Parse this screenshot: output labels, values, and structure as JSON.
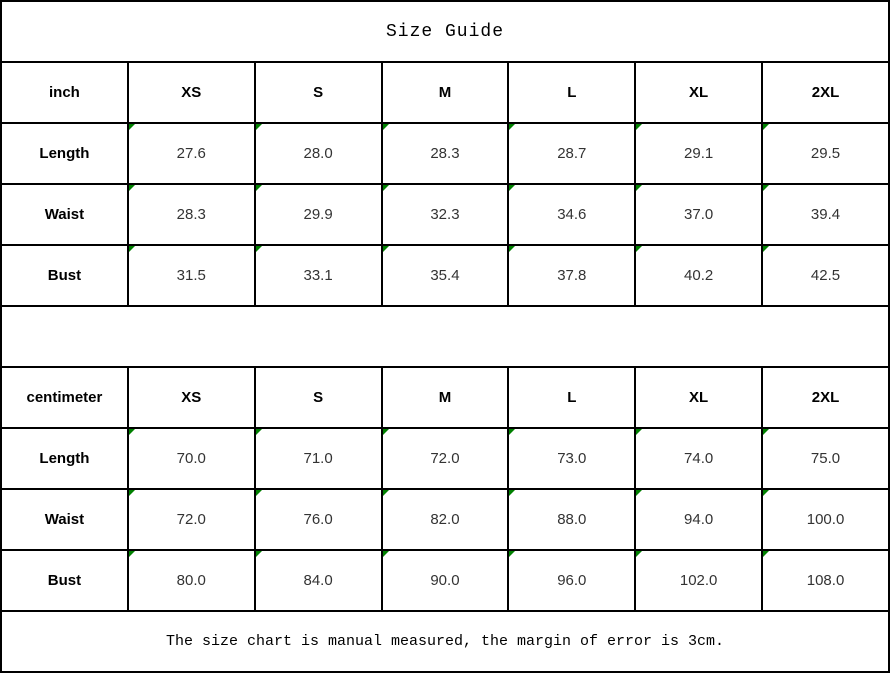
{
  "page": {
    "title": "Size Guide",
    "footer_note": "The size chart is manual measured, the margin of error is 3cm."
  },
  "chart_data": {
    "type": "table",
    "title": "Size Guide",
    "note": "The size chart is manual measured, the margin of error is 3cm.",
    "tables": [
      {
        "unit": "inch",
        "columns": [
          "inch",
          "XS",
          "S",
          "M",
          "L",
          "XL",
          "2XL"
        ],
        "rows": [
          {
            "label": "Length",
            "values": [
              "27.6",
              "28.0",
              "28.3",
              "28.7",
              "29.1",
              "29.5"
            ]
          },
          {
            "label": "Waist",
            "values": [
              "28.3",
              "29.9",
              "32.3",
              "34.6",
              "37.0",
              "39.4"
            ]
          },
          {
            "label": "Bust",
            "values": [
              "31.5",
              "33.1",
              "35.4",
              "37.8",
              "40.2",
              "42.5"
            ]
          }
        ]
      },
      {
        "unit": "centimeter",
        "columns": [
          "centimeter",
          "XS",
          "S",
          "M",
          "L",
          "XL",
          "2XL"
        ],
        "rows": [
          {
            "label": "Length",
            "values": [
              "70.0",
              "71.0",
              "72.0",
              "73.0",
              "74.0",
              "75.0"
            ]
          },
          {
            "label": "Waist",
            "values": [
              "72.0",
              "76.0",
              "82.0",
              "88.0",
              "94.0",
              "100.0"
            ]
          },
          {
            "label": "Bust",
            "values": [
              "80.0",
              "84.0",
              "90.0",
              "96.0",
              "102.0",
              "108.0"
            ]
          }
        ]
      }
    ],
    "colors": {
      "flag_triangle": "#008000",
      "border": "#000000",
      "background": "#ffffff"
    }
  }
}
